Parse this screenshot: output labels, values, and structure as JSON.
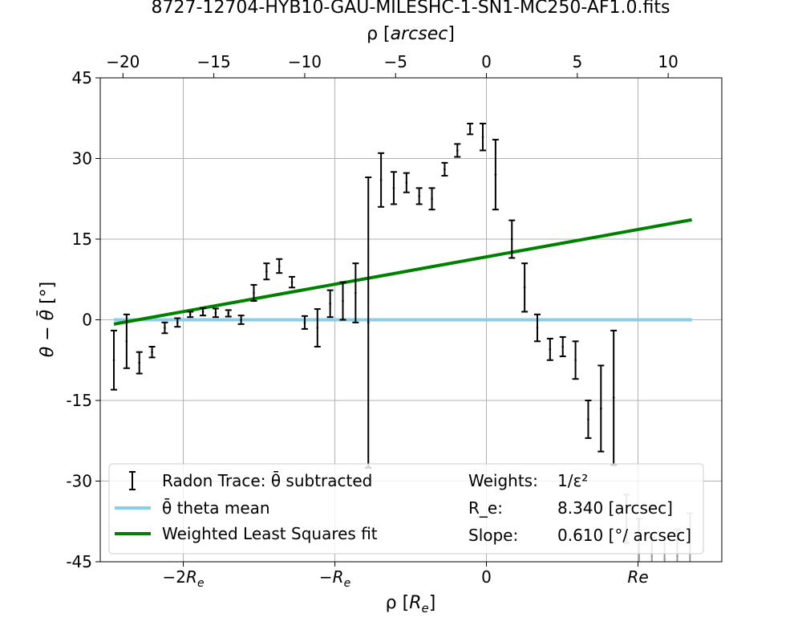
{
  "chart_data": {
    "type": "scatter",
    "title": "8727-12704-HYB10-GAU-MILESHC-1-SN1-MC250-AF1.0.fits",
    "xlabel": "ρ [R_e]",
    "ylabel": "θ − θ̄ [°]",
    "top_xlabel": "ρ [arcsec]",
    "xlim": [
      -21.25,
      12.95
    ],
    "ylim": [
      -45,
      45
    ],
    "grid": true,
    "y_ticks": [
      {
        "value": -45,
        "label": "-45"
      },
      {
        "value": -30,
        "label": "-30"
      },
      {
        "value": -15,
        "label": "-15"
      },
      {
        "value": 0,
        "label": "0"
      },
      {
        "value": 15,
        "label": "15"
      },
      {
        "value": 30,
        "label": "30"
      },
      {
        "value": 45,
        "label": "45"
      }
    ],
    "bottom_ticks": [
      {
        "value": -16.68,
        "label": "−2R",
        "sub": "e"
      },
      {
        "value": -8.34,
        "label": "−R",
        "sub": "e"
      },
      {
        "value": 0,
        "label": "0",
        "sub": ""
      },
      {
        "value": 8.34,
        "label": "Re",
        "sub": ""
      }
    ],
    "top_ticks": [
      {
        "value": -20,
        "label": "−20"
      },
      {
        "value": -15,
        "label": "−15"
      },
      {
        "value": -10,
        "label": "−10"
      },
      {
        "value": -5,
        "label": "−5"
      },
      {
        "value": 0,
        "label": "0"
      },
      {
        "value": 5,
        "label": "5"
      },
      {
        "value": 10,
        "label": "10"
      }
    ],
    "series": [
      {
        "name": "Radon Trace: θ̄ subtracted",
        "kind": "errorbar",
        "color": "#000000",
        "points": [
          {
            "x": -20.5,
            "y": -7.5,
            "err": 5.5
          },
          {
            "x": -19.8,
            "y": -4.0,
            "err": 5.0
          },
          {
            "x": -19.1,
            "y": -8.0,
            "err": 2.0
          },
          {
            "x": -18.4,
            "y": -6.0,
            "err": 1.0
          },
          {
            "x": -17.7,
            "y": -1.5,
            "err": 1.0
          },
          {
            "x": -17.0,
            "y": -0.5,
            "err": 0.8
          },
          {
            "x": -16.3,
            "y": 1.0,
            "err": 0.5
          },
          {
            "x": -15.6,
            "y": 1.5,
            "err": 0.7
          },
          {
            "x": -14.9,
            "y": 1.3,
            "err": 0.8
          },
          {
            "x": -14.2,
            "y": 1.2,
            "err": 0.6
          },
          {
            "x": -13.5,
            "y": 0.0,
            "err": 0.8
          },
          {
            "x": -12.8,
            "y": 5.0,
            "err": 1.5
          },
          {
            "x": -12.1,
            "y": 9.0,
            "err": 1.5
          },
          {
            "x": -11.4,
            "y": 10.0,
            "err": 1.3
          },
          {
            "x": -10.7,
            "y": 7.0,
            "err": 1.0
          },
          {
            "x": -10.0,
            "y": -0.5,
            "err": 1.2
          },
          {
            "x": -9.3,
            "y": -1.5,
            "err": 3.5
          },
          {
            "x": -8.6,
            "y": 3.0,
            "err": 2.5
          },
          {
            "x": -7.9,
            "y": 3.5,
            "err": 3.5
          },
          {
            "x": -7.2,
            "y": 5.0,
            "err": 5.5
          },
          {
            "x": -6.5,
            "y": -0.5,
            "err": 27.0
          },
          {
            "x": -5.8,
            "y": 26.0,
            "err": 5.0
          },
          {
            "x": -5.1,
            "y": 24.5,
            "err": 3.0
          },
          {
            "x": -4.4,
            "y": 25.5,
            "err": 1.8
          },
          {
            "x": -3.7,
            "y": 23.0,
            "err": 1.5
          },
          {
            "x": -3.0,
            "y": 22.5,
            "err": 2.0
          },
          {
            "x": -2.3,
            "y": 28.0,
            "err": 1.2
          },
          {
            "x": -1.6,
            "y": 31.5,
            "err": 1.2
          },
          {
            "x": -0.9,
            "y": 35.5,
            "err": 1.0
          },
          {
            "x": -0.2,
            "y": 34.0,
            "err": 2.5
          },
          {
            "x": 0.5,
            "y": 27.0,
            "err": 6.5
          },
          {
            "x": 1.4,
            "y": 15.0,
            "err": 3.5
          },
          {
            "x": 2.1,
            "y": 6.0,
            "err": 4.5
          },
          {
            "x": 2.8,
            "y": -1.5,
            "err": 2.5
          },
          {
            "x": 3.5,
            "y": -5.5,
            "err": 2.0
          },
          {
            "x": 4.2,
            "y": -5.0,
            "err": 1.8
          },
          {
            "x": 4.9,
            "y": -7.5,
            "err": 3.5
          },
          {
            "x": 5.6,
            "y": -18.5,
            "err": 3.5
          },
          {
            "x": 6.3,
            "y": -16.5,
            "err": 8.0
          },
          {
            "x": 7.0,
            "y": -14.5,
            "err": 12.5
          },
          {
            "x": 7.7,
            "y": -37.0,
            "err": 4.5
          },
          {
            "x": 8.4,
            "y": -42.0,
            "err": 5.0
          },
          {
            "x": 9.1,
            "y": -44.0,
            "err": 3.5
          },
          {
            "x": 9.8,
            "y": -44.5,
            "err": 4.0
          },
          {
            "x": 10.5,
            "y": -44.0,
            "err": 5.0
          },
          {
            "x": 11.2,
            "y": -42.0,
            "err": 6.0
          }
        ]
      },
      {
        "name": "θ̄ theta mean",
        "kind": "line",
        "color": "#87ceeb",
        "x": [
          -20.5,
          11.3
        ],
        "y": [
          0,
          0
        ]
      },
      {
        "name": "Weighted Least Squares fit",
        "kind": "line",
        "color": "#008000",
        "x": [
          -20.5,
          11.3
        ],
        "y": [
          -0.8,
          18.6
        ]
      }
    ],
    "legend_placement": "bottom",
    "legend_info": [
      {
        "label": "Weights:",
        "value": "1/ε²"
      },
      {
        "label": "R_e:",
        "value": "8.340 [arcsec]"
      },
      {
        "label": "Slope:",
        "value": "0.610 [°/ arcsec]"
      }
    ]
  }
}
